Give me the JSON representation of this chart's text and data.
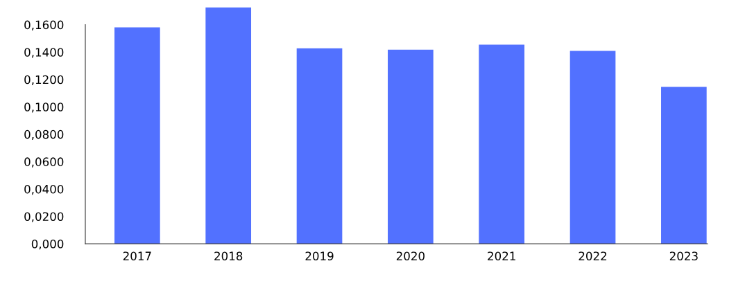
{
  "chart_data": {
    "type": "bar",
    "categories": [
      "2017",
      "2018",
      "2019",
      "2020",
      "2021",
      "2022",
      "2023"
    ],
    "values": [
      0.158,
      0.1726,
      0.1428,
      0.1418,
      0.1454,
      0.1408,
      0.1146
    ],
    "color": "#5271ff",
    "ylim": [
      0,
      0.175
    ],
    "yticks": [
      {
        "value": 0,
        "label": "0,000"
      },
      {
        "value": 0.02,
        "label": "0,0200"
      },
      {
        "value": 0.04,
        "label": "0,0400"
      },
      {
        "value": 0.06,
        "label": "0,0600"
      },
      {
        "value": 0.08,
        "label": "0,0800"
      },
      {
        "value": 0.1,
        "label": "0,1000"
      },
      {
        "value": 0.12,
        "label": "0,1200"
      },
      {
        "value": 0.14,
        "label": "0,1400"
      },
      {
        "value": 0.16,
        "label": "0,1600"
      }
    ],
    "grid": false,
    "legend": false
  }
}
